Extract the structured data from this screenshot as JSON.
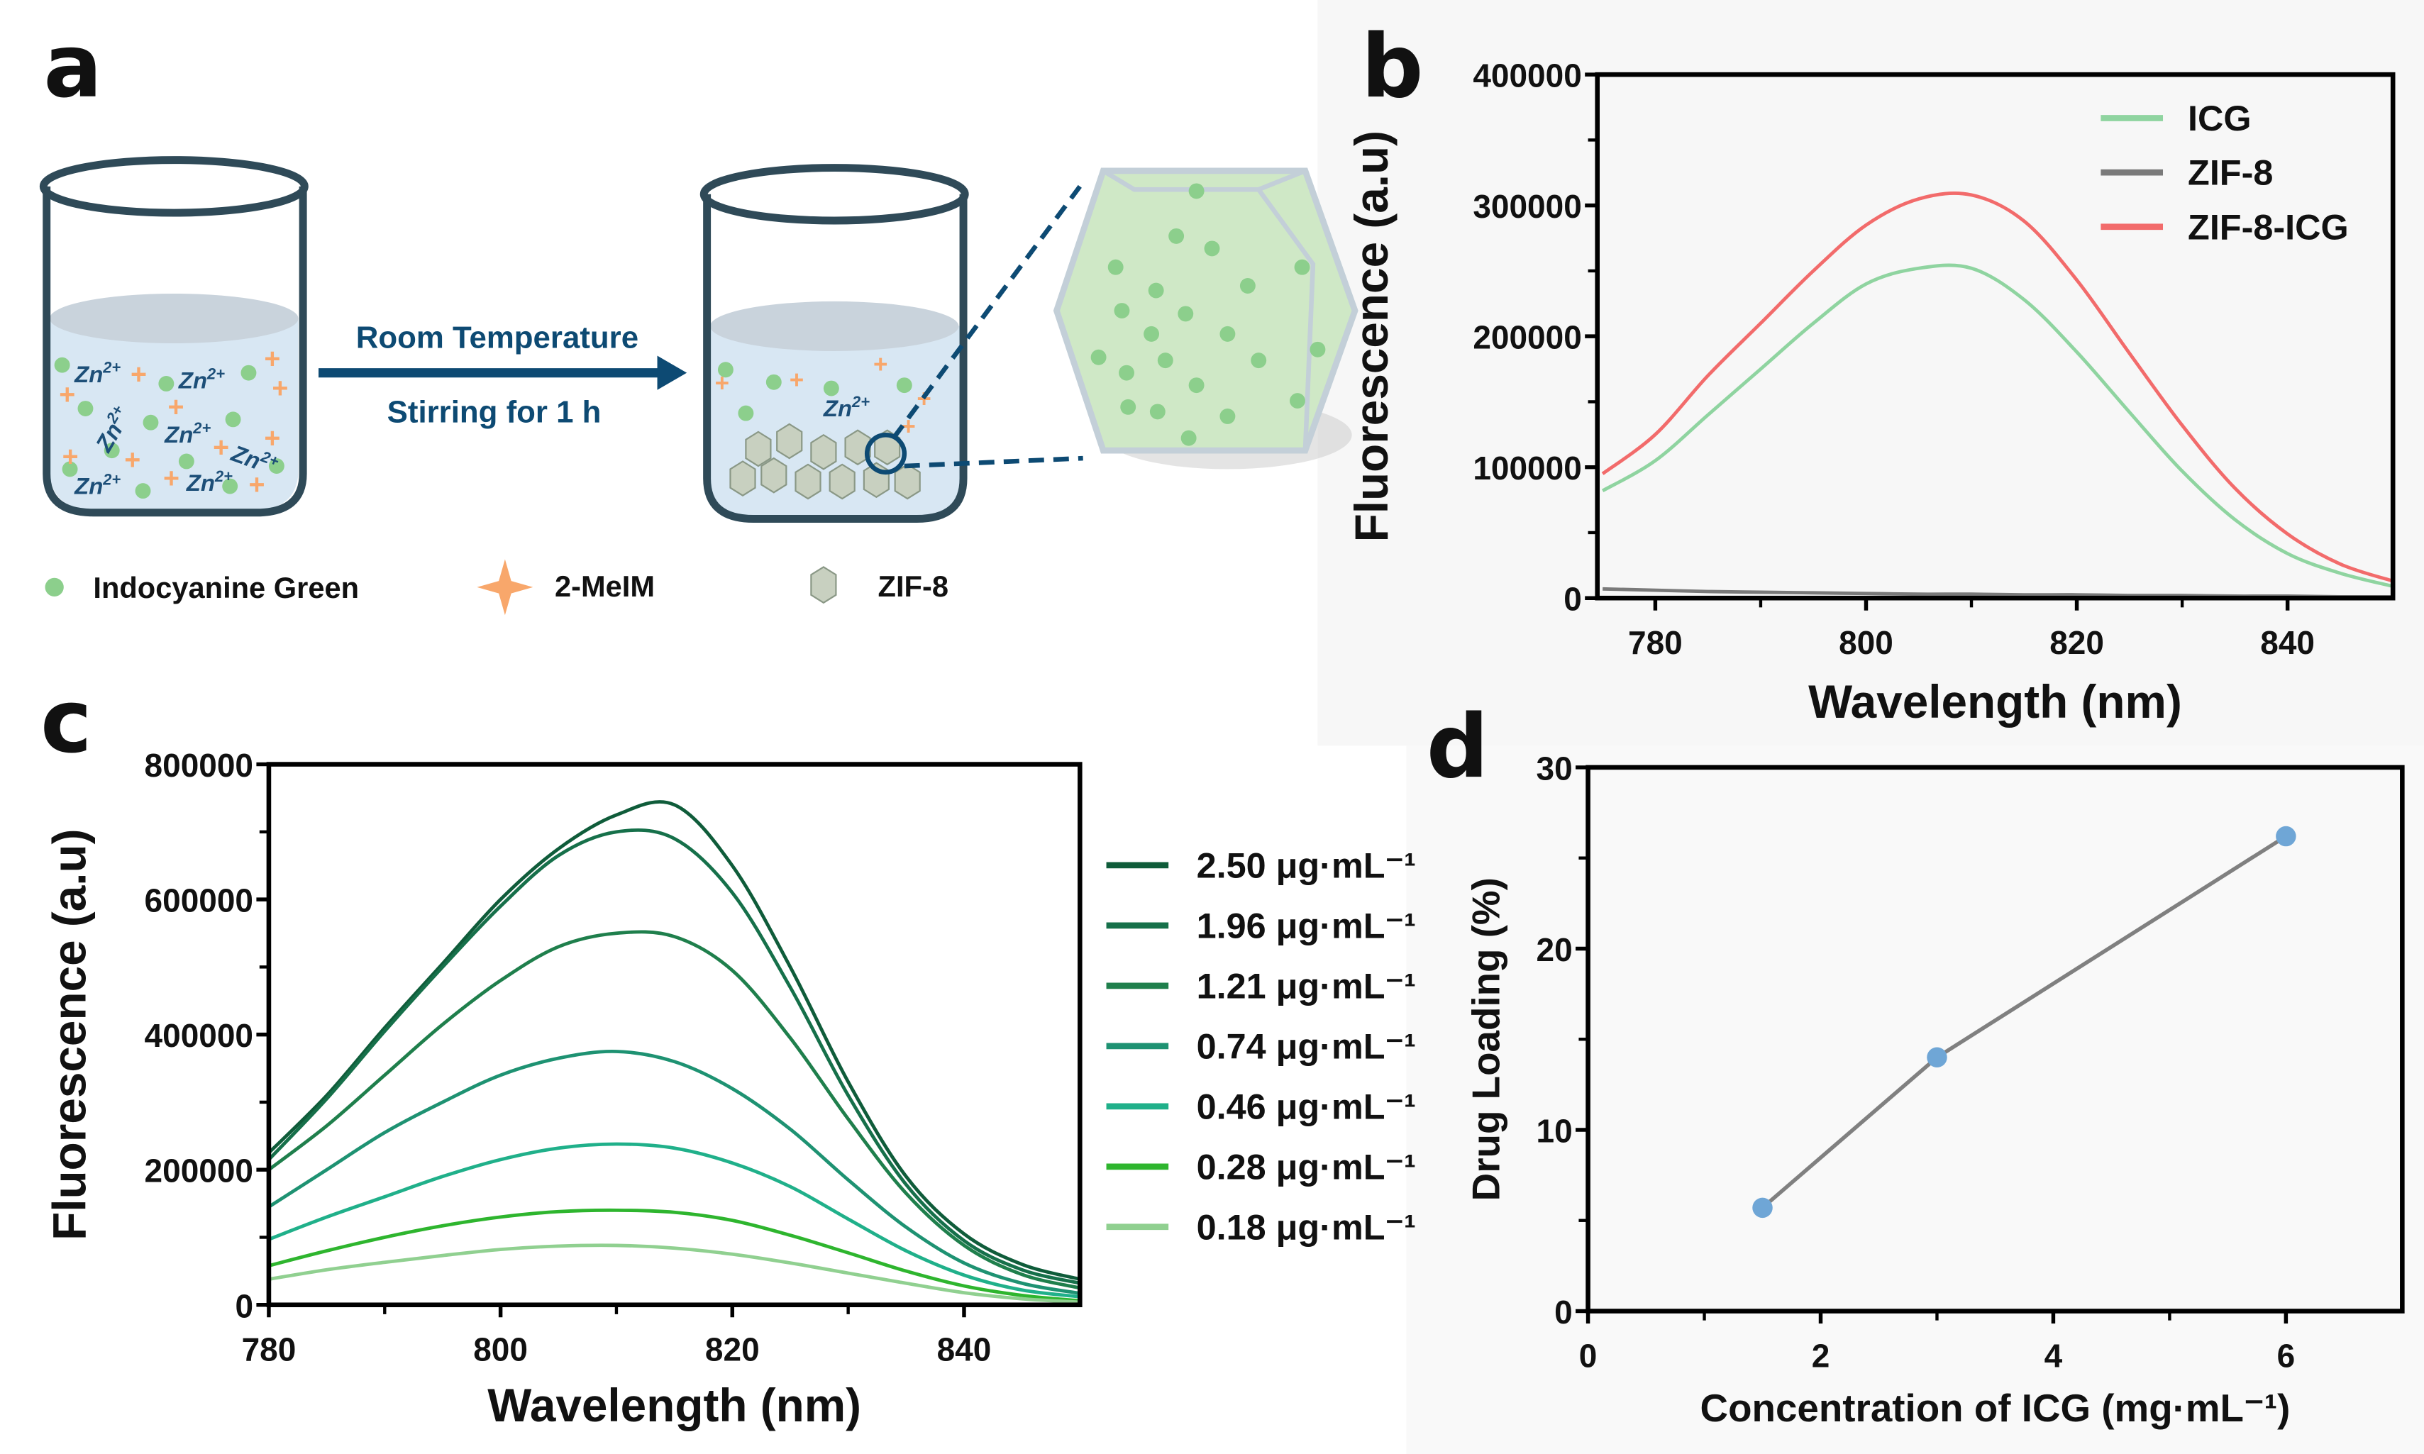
{
  "panels": {
    "a": "a",
    "b": "b",
    "c": "c",
    "d": "d"
  },
  "schematic": {
    "arrow_top": "Room Temperature",
    "arrow_bottom": "Stirring for 1 h",
    "ion_label": "Zn",
    "ion_charge": "2+",
    "legend": [
      "Indocyanine Green",
      "2-MeIM",
      "ZIF-8"
    ],
    "colors": {
      "icg": "#8ccf8c",
      "meim": "#f8a76b",
      "zif8": "#c8d0c0",
      "liquid": "#d8e7f3",
      "beaker": "#2f4a58",
      "arrow": "#0d4a73"
    }
  },
  "chart_data": [
    {
      "id": "b",
      "type": "line",
      "xlabel": "Wavelength (nm)",
      "ylabel": "Fluorescence (a.u)",
      "xlim": [
        774.5,
        850
      ],
      "ylim": [
        0,
        400000
      ],
      "xticks": [
        780,
        800,
        820,
        840
      ],
      "yticks": [
        0,
        100000,
        200000,
        300000,
        400000
      ],
      "legend_position": "top-right",
      "x": [
        775,
        780,
        785,
        790,
        795,
        800,
        805,
        810,
        815,
        820,
        825,
        830,
        835,
        840,
        845,
        850
      ],
      "series": [
        {
          "name": "ICG",
          "color": "#8fd4a0",
          "values": [
            82000,
            105000,
            140000,
            175000,
            210000,
            240000,
            252000,
            252000,
            228000,
            188000,
            142000,
            97000,
            60000,
            34000,
            19000,
            9000
          ]
        },
        {
          "name": "ZIF-8",
          "color": "#7a7a7a",
          "values": [
            7000,
            6000,
            5000,
            4500,
            4000,
            3500,
            3000,
            3000,
            2500,
            2500,
            2000,
            2000,
            1500,
            1500,
            1000,
            1000
          ]
        },
        {
          "name": "ZIF-8-ICG",
          "color": "#f26b6b",
          "values": [
            95000,
            125000,
            170000,
            210000,
            250000,
            285000,
            305000,
            308000,
            288000,
            243000,
            187000,
            132000,
            84000,
            49000,
            26000,
            13000
          ]
        }
      ]
    },
    {
      "id": "c",
      "type": "line",
      "xlabel": "Wavelength (nm)",
      "ylabel": "Fluorescence (a.u)",
      "xlim": [
        780,
        850
      ],
      "ylim": [
        0,
        800000
      ],
      "xticks": [
        780,
        800,
        820,
        840
      ],
      "yticks": [
        0,
        200000,
        400000,
        600000,
        800000
      ],
      "legend_position": "right-outside",
      "x": [
        780,
        785,
        790,
        795,
        800,
        805,
        810,
        815,
        820,
        825,
        830,
        835,
        840,
        845,
        850
      ],
      "series": [
        {
          "name": "2.50 μg·mL⁻¹",
          "color": "#0f5c3a",
          "values": [
            225000,
            310000,
            410000,
            505000,
            600000,
            675000,
            725000,
            740000,
            650000,
            500000,
            330000,
            190000,
            105000,
            60000,
            38000
          ]
        },
        {
          "name": "1.96 μg·mL⁻¹",
          "color": "#16704a",
          "values": [
            215000,
            305000,
            405000,
            500000,
            590000,
            665000,
            700000,
            690000,
            610000,
            470000,
            310000,
            178000,
            95000,
            52000,
            32000
          ]
        },
        {
          "name": "1.21 μg·mL⁻¹",
          "color": "#1f7f4c",
          "values": [
            200000,
            265000,
            340000,
            415000,
            480000,
            530000,
            550000,
            545000,
            495000,
            395000,
            275000,
            165000,
            88000,
            45000,
            25000
          ]
        },
        {
          "name": "0.74 μg·mL⁻¹",
          "color": "#1e9272",
          "values": [
            145000,
            200000,
            255000,
            300000,
            340000,
            365000,
            375000,
            360000,
            320000,
            260000,
            185000,
            115000,
            62000,
            32000,
            17000
          ]
        },
        {
          "name": "0.46 μg·mL⁻¹",
          "color": "#20b08a",
          "values": [
            97000,
            130000,
            160000,
            190000,
            215000,
            232000,
            238000,
            232000,
            210000,
            175000,
            127000,
            80000,
            44000,
            22000,
            12000
          ]
        },
        {
          "name": "0.28 μg·mL⁻¹",
          "color": "#2eb52e",
          "values": [
            58000,
            80000,
            100000,
            117000,
            130000,
            138000,
            140000,
            137000,
            125000,
            103000,
            77000,
            50000,
            28000,
            14000,
            6000
          ]
        },
        {
          "name": "0.18 μg·mL⁻¹",
          "color": "#90d090",
          "values": [
            38000,
            52000,
            63000,
            73000,
            82000,
            87000,
            88000,
            84000,
            75000,
            62000,
            47000,
            32000,
            18000,
            9000,
            4000
          ]
        }
      ]
    },
    {
      "id": "d",
      "type": "line",
      "xlabel": "Concentration of ICG (mg·mL⁻¹)",
      "ylabel": "Drug Loading (%)",
      "xlim": [
        0,
        7
      ],
      "ylim": [
        0,
        30
      ],
      "xticks": [
        0,
        2,
        4,
        6
      ],
      "yticks": [
        0,
        10,
        20,
        30
      ],
      "x": [
        1.5,
        3,
        6
      ],
      "series": [
        {
          "name": "Drug Loading",
          "color": "#808080",
          "marker_color": "#6fa6d6",
          "values": [
            5.7,
            14.0,
            26.2
          ]
        }
      ]
    }
  ]
}
